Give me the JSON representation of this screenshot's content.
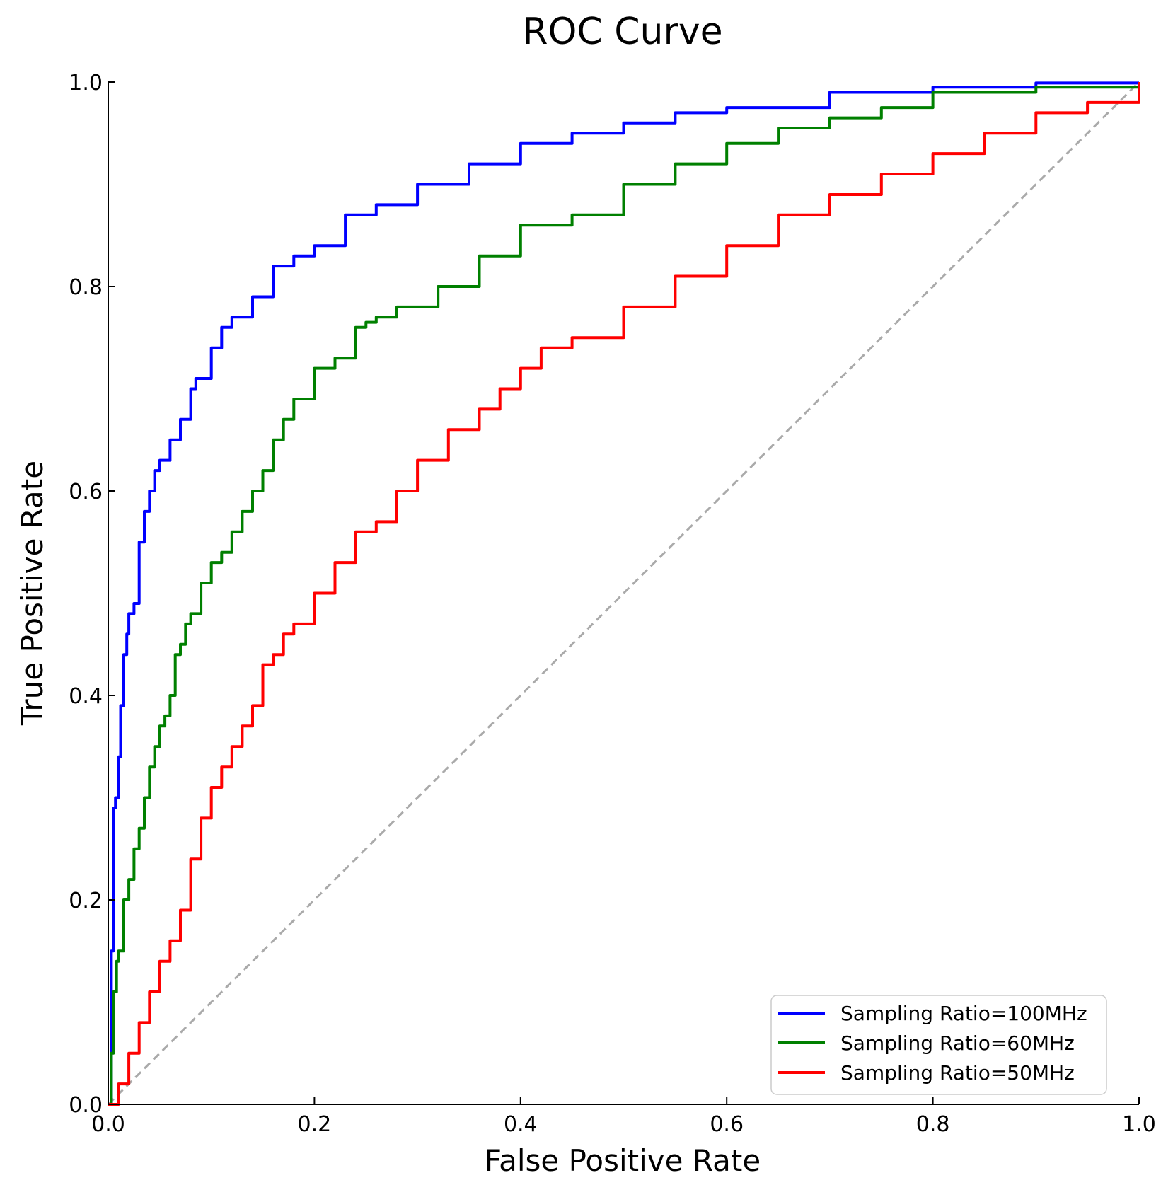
{
  "chart_data": {
    "type": "line",
    "title": "ROC Curve",
    "xlabel": "False Positive Rate",
    "ylabel": "True Positive Rate",
    "xlim": [
      0.0,
      1.0
    ],
    "ylim": [
      0.0,
      1.0
    ],
    "x_ticks": [
      "0.0",
      "0.2",
      "0.4",
      "0.6",
      "0.8",
      "1.0"
    ],
    "y_ticks": [
      "0.0",
      "0.2",
      "0.4",
      "0.6",
      "0.8",
      "1.0"
    ],
    "grid": false,
    "legend_position": "bottom-right",
    "diagonal": {
      "x": [
        0,
        1
      ],
      "y": [
        0,
        1
      ],
      "color": "#aaaaaa",
      "style": "dashed"
    },
    "series": [
      {
        "name": "Sampling Ratio=100MHz",
        "color": "#0000ff",
        "x": [
          0.0,
          0.003,
          0.005,
          0.007,
          0.01,
          0.012,
          0.015,
          0.018,
          0.02,
          0.025,
          0.03,
          0.035,
          0.04,
          0.045,
          0.05,
          0.06,
          0.07,
          0.08,
          0.085,
          0.1,
          0.11,
          0.12,
          0.14,
          0.16,
          0.18,
          0.2,
          0.23,
          0.26,
          0.3,
          0.35,
          0.4,
          0.45,
          0.5,
          0.55,
          0.6,
          0.7,
          0.8,
          0.9,
          1.0
        ],
        "y": [
          0.0,
          0.15,
          0.29,
          0.3,
          0.34,
          0.39,
          0.44,
          0.46,
          0.48,
          0.49,
          0.55,
          0.58,
          0.6,
          0.62,
          0.63,
          0.65,
          0.67,
          0.7,
          0.71,
          0.74,
          0.76,
          0.77,
          0.79,
          0.82,
          0.83,
          0.84,
          0.87,
          0.88,
          0.9,
          0.92,
          0.94,
          0.95,
          0.96,
          0.97,
          0.975,
          0.99,
          0.995,
          0.999,
          1.0
        ]
      },
      {
        "name": "Sampling Ratio=60MHz",
        "color": "#008000",
        "x": [
          0.0,
          0.003,
          0.005,
          0.008,
          0.01,
          0.015,
          0.02,
          0.025,
          0.03,
          0.035,
          0.04,
          0.045,
          0.05,
          0.055,
          0.06,
          0.065,
          0.07,
          0.075,
          0.08,
          0.09,
          0.1,
          0.11,
          0.12,
          0.13,
          0.14,
          0.15,
          0.16,
          0.17,
          0.18,
          0.2,
          0.22,
          0.24,
          0.25,
          0.26,
          0.28,
          0.32,
          0.36,
          0.4,
          0.45,
          0.5,
          0.55,
          0.6,
          0.65,
          0.7,
          0.75,
          0.8,
          0.9,
          1.0
        ],
        "y": [
          0.0,
          0.05,
          0.11,
          0.14,
          0.15,
          0.2,
          0.22,
          0.25,
          0.27,
          0.3,
          0.33,
          0.35,
          0.37,
          0.38,
          0.4,
          0.44,
          0.45,
          0.47,
          0.48,
          0.51,
          0.53,
          0.54,
          0.56,
          0.58,
          0.6,
          0.62,
          0.65,
          0.67,
          0.69,
          0.72,
          0.73,
          0.76,
          0.765,
          0.77,
          0.78,
          0.8,
          0.83,
          0.86,
          0.87,
          0.9,
          0.92,
          0.94,
          0.955,
          0.965,
          0.975,
          0.99,
          0.995,
          1.0
        ]
      },
      {
        "name": "Sampling Ratio=50MHz",
        "color": "#ff0000",
        "x": [
          0.0,
          0.01,
          0.02,
          0.03,
          0.04,
          0.05,
          0.06,
          0.07,
          0.08,
          0.09,
          0.1,
          0.11,
          0.12,
          0.13,
          0.14,
          0.15,
          0.16,
          0.17,
          0.18,
          0.2,
          0.22,
          0.24,
          0.26,
          0.28,
          0.3,
          0.33,
          0.36,
          0.38,
          0.4,
          0.42,
          0.45,
          0.5,
          0.55,
          0.6,
          0.65,
          0.7,
          0.75,
          0.8,
          0.85,
          0.9,
          0.95,
          1.0
        ],
        "y": [
          0.0,
          0.02,
          0.05,
          0.08,
          0.11,
          0.14,
          0.16,
          0.19,
          0.24,
          0.28,
          0.31,
          0.33,
          0.35,
          0.37,
          0.39,
          0.43,
          0.44,
          0.46,
          0.47,
          0.5,
          0.53,
          0.56,
          0.57,
          0.6,
          0.63,
          0.66,
          0.68,
          0.7,
          0.72,
          0.74,
          0.75,
          0.78,
          0.81,
          0.84,
          0.87,
          0.89,
          0.91,
          0.93,
          0.95,
          0.97,
          0.98,
          1.0
        ]
      }
    ]
  }
}
